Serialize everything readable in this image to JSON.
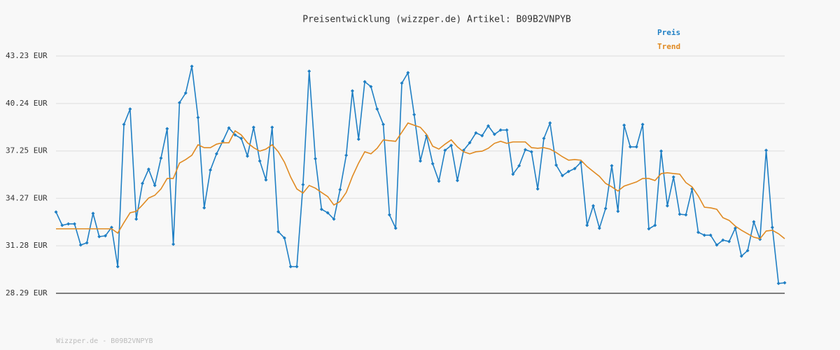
{
  "chart_data": {
    "type": "line",
    "title": "Preisentwicklung (wizzper.de) Artikel: B09B2VNPYB",
    "footer": "Wizzper.de - B09B2VNPYB",
    "ylim": [
      28.29,
      43.23
    ],
    "yticks": [
      {
        "value": 28.29,
        "label": "28.29 EUR"
      },
      {
        "value": 31.28,
        "label": "31.28 EUR"
      },
      {
        "value": 34.27,
        "label": "34.27 EUR"
      },
      {
        "value": 37.25,
        "label": "37.25 EUR"
      },
      {
        "value": 40.24,
        "label": "40.24 EUR"
      },
      {
        "value": 43.23,
        "label": "43.23 EUR"
      }
    ],
    "grid": true,
    "series": [
      {
        "name": "Preis",
        "color": "#1f7fc4",
        "markers": true,
        "values": [
          33.41,
          32.57,
          32.66,
          32.66,
          31.33,
          31.47,
          33.32,
          31.86,
          31.91,
          32.44,
          29.97,
          38.92,
          39.89,
          32.96,
          35.21,
          36.1,
          35.08,
          36.8,
          38.65,
          31.38,
          40.29,
          40.9,
          42.58,
          39.36,
          33.67,
          36.05,
          37.07,
          37.86,
          38.7,
          38.26,
          38.04,
          36.93,
          38.74,
          36.62,
          35.43,
          38.74,
          32.17,
          31.77,
          29.97,
          29.97,
          35.13,
          42.27,
          36.76,
          33.58,
          33.36,
          32.96,
          34.82,
          36.98,
          41.03,
          37.99,
          41.61,
          41.3,
          39.89,
          38.92,
          33.23,
          32.39,
          41.52,
          42.18,
          39.54,
          36.62,
          38.21,
          36.45,
          35.35,
          37.29,
          37.6,
          35.39,
          37.29,
          37.77,
          38.39,
          38.21,
          38.83,
          38.3,
          38.57,
          38.57,
          35.79,
          36.32,
          37.33,
          37.2,
          34.86,
          38.04,
          39.01,
          36.36,
          35.7,
          35.96,
          36.14,
          36.54,
          32.57,
          33.8,
          32.39,
          33.63,
          36.32,
          33.45,
          38.87,
          37.51,
          37.51,
          38.92,
          32.35,
          32.57,
          37.24,
          33.8,
          35.61,
          33.27,
          33.23,
          34.86,
          32.13,
          31.95,
          31.95,
          31.33,
          31.64,
          31.55,
          32.39,
          30.63,
          30.98,
          32.79,
          31.69,
          37.29,
          32.44,
          28.91,
          28.95
        ]
      },
      {
        "name": "Trend",
        "color": "#e08a22",
        "markers": false,
        "values": [
          32.35,
          32.35,
          32.35,
          32.35,
          32.35,
          32.35,
          32.35,
          32.35,
          32.35,
          32.35,
          32.08,
          32.74,
          33.36,
          33.45,
          33.85,
          34.29,
          34.46,
          34.86,
          35.52,
          35.52,
          36.49,
          36.71,
          36.98,
          37.64,
          37.46,
          37.46,
          37.68,
          37.77,
          37.77,
          38.52,
          38.26,
          37.77,
          37.46,
          37.24,
          37.37,
          37.64,
          37.2,
          36.54,
          35.61,
          34.86,
          34.6,
          35.08,
          34.91,
          34.64,
          34.38,
          33.85,
          34.07,
          34.64,
          35.65,
          36.49,
          37.2,
          37.07,
          37.42,
          37.95,
          37.9,
          37.86,
          38.43,
          39.01,
          38.87,
          38.74,
          38.3,
          37.55,
          37.37,
          37.68,
          37.95,
          37.51,
          37.2,
          37.07,
          37.2,
          37.24,
          37.42,
          37.73,
          37.86,
          37.73,
          37.82,
          37.82,
          37.82,
          37.46,
          37.42,
          37.46,
          37.37,
          37.15,
          36.89,
          36.67,
          36.71,
          36.67,
          36.27,
          35.96,
          35.65,
          35.21,
          34.99,
          34.73,
          35.04,
          35.17,
          35.3,
          35.52,
          35.52,
          35.39,
          35.83,
          35.88,
          35.83,
          35.79,
          35.26,
          34.99,
          34.42,
          33.71,
          33.67,
          33.58,
          33.05,
          32.88,
          32.52,
          32.26,
          32.04,
          31.82,
          31.73,
          32.21,
          32.26,
          32.04,
          31.73
        ]
      }
    ]
  }
}
